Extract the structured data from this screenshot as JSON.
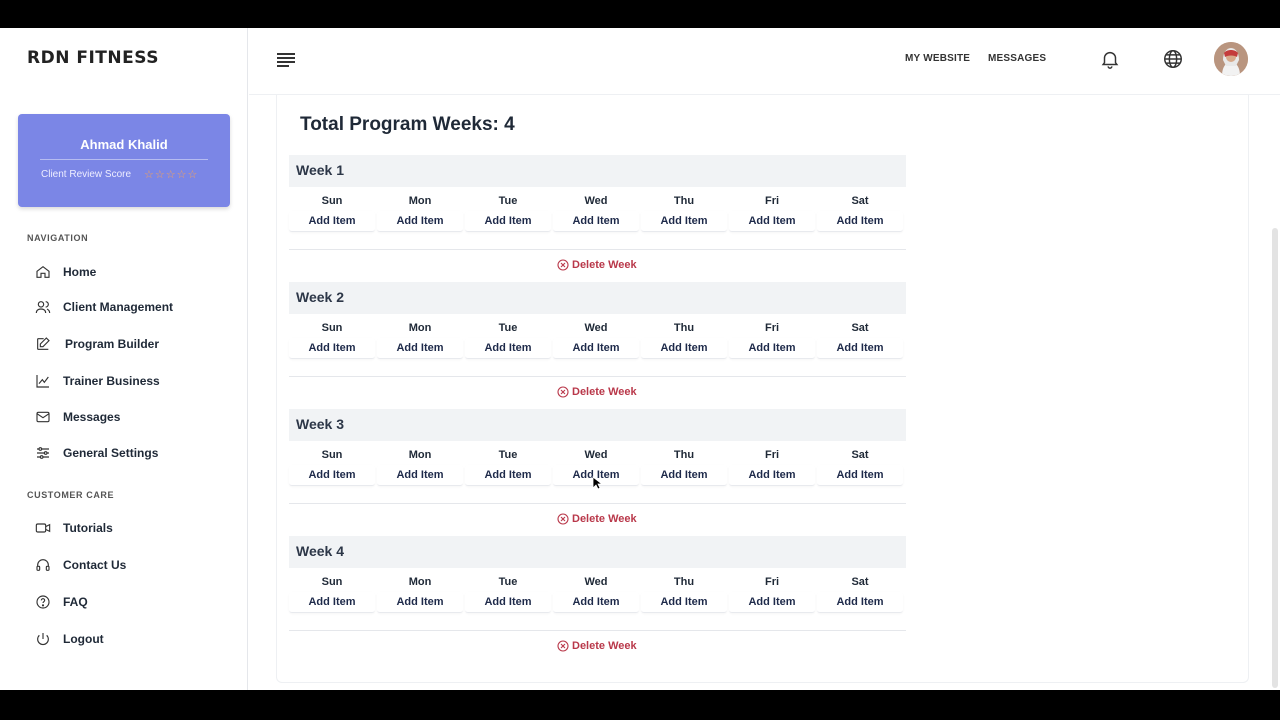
{
  "brand": {
    "logo": "RDN FITNESS"
  },
  "header": {
    "links": [
      "MY WEBSITE",
      "MESSAGES"
    ],
    "icons": [
      "bell-icon",
      "globe-icon"
    ]
  },
  "profile": {
    "name": "Ahmad Khalid",
    "score_label": "Client Review Score",
    "stars": "☆☆☆☆☆",
    "star_rating": 0
  },
  "sidebar": {
    "navigation_label": "NAVIGATION",
    "navigation": [
      {
        "label": "Home",
        "icon": "home-icon"
      },
      {
        "label": "Client Management",
        "icon": "users-icon"
      },
      {
        "label": "Program Builder",
        "icon": "edit-icon"
      },
      {
        "label": "Trainer Business",
        "icon": "chart-line-icon"
      },
      {
        "label": "Messages",
        "icon": "mail-icon"
      },
      {
        "label": "General Settings",
        "icon": "sliders-icon"
      }
    ],
    "care_label": "CUSTOMER CARE",
    "care": [
      {
        "label": "Tutorials",
        "icon": "video-icon"
      },
      {
        "label": "Contact Us",
        "icon": "headset-icon"
      },
      {
        "label": "FAQ",
        "icon": "question-icon"
      },
      {
        "label": "Logout",
        "icon": "power-icon"
      }
    ]
  },
  "main": {
    "title": "Total Program Weeks: 4",
    "days": [
      "Sun",
      "Mon",
      "Tue",
      "Wed",
      "Thu",
      "Fri",
      "Sat"
    ],
    "add_label": "Add Item",
    "delete_label": "Delete Week",
    "weeks": [
      {
        "title": "Week 1"
      },
      {
        "title": "Week 2"
      },
      {
        "title": "Week 3"
      },
      {
        "title": "Week 4"
      }
    ]
  },
  "colors": {
    "accent": "#7b86e6",
    "danger": "#b9384a",
    "star": "#f5a25d"
  }
}
